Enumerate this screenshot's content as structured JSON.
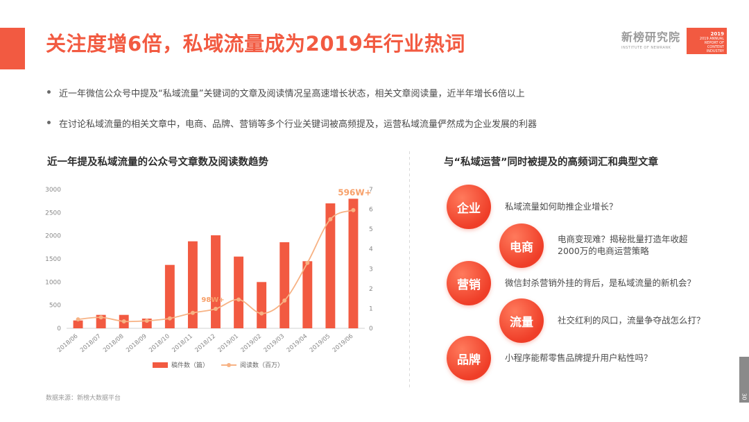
{
  "header": {
    "title": "关注度增6倍，私域流量成为2019年行业热词",
    "brand_cn": "新榜研究院",
    "brand_en": "INSTITUTE OF NEWRANK",
    "report_year": "2019",
    "report_line1": "2019 ANNUAL",
    "report_line2": "REPORT OF",
    "report_line3": "CONTENT INDUSTRY"
  },
  "bullets": [
    "近一年微信公众号中提及“私域流量”关键词的文章及阅读情况呈高速增长状态，相关文章阅读量，近半年增长6倍以上",
    "在讨论私域流量的相关文章中，电商、品牌、营销等多个行业关键词被高频提及，运营私域流量俨然成为企业发展的利器"
  ],
  "left_section_title": "近一年提及私域流量的公众号文章数及阅读数趋势",
  "right_section_title": "与“私域运营”同时被提及的高频词汇和典型文章",
  "chart_data": {
    "type": "bar",
    "categories": [
      "2018/06",
      "2018/07",
      "2018/08",
      "2018/09",
      "2018/10",
      "2018/11",
      "2018/12",
      "2019/01",
      "2019/02",
      "2019/03",
      "2019/04",
      "2019/05",
      "2019/06"
    ],
    "y_left_ticks": [
      "0",
      "500",
      "1000",
      "1500",
      "2000",
      "2500",
      "3000"
    ],
    "y_right_ticks": [
      "0",
      "1",
      "2",
      "3",
      "4",
      "5",
      "6",
      "7"
    ],
    "ylim_left": [
      0,
      3000
    ],
    "ylim_right": [
      0,
      7
    ],
    "series": [
      {
        "name": "稿件数（篇）",
        "type": "bar",
        "axis": "left",
        "color": "#f25a41",
        "values": [
          170,
          290,
          290,
          210,
          1370,
          1880,
          2010,
          1550,
          1000,
          1860,
          1450,
          2700,
          2800
        ]
      },
      {
        "name": "阅读数（百万）",
        "type": "line",
        "axis": "right",
        "color": "#f7b284",
        "values": [
          0.45,
          0.55,
          0.35,
          0.38,
          0.5,
          0.78,
          0.98,
          1.45,
          0.75,
          1.4,
          3.3,
          5.5,
          5.96
        ]
      }
    ],
    "annotations": [
      {
        "label": "98W+",
        "index": 6
      },
      {
        "label": "596W+",
        "index": 12
      }
    ]
  },
  "legend": {
    "bar_label": "稿件数（篇）",
    "line_label": "阅读数（百万）"
  },
  "source": "数据来源：新榜大数据平台",
  "keywords": [
    {
      "word": "企业",
      "article": "私域流量如何助推企业增长？"
    },
    {
      "word": "电商",
      "article": "电商变现难？揭秘批量打造年收超\n2000万的电商运营策略"
    },
    {
      "word": "营销",
      "article": "微信封杀营销外挂的背后，是私域流量的新机会？"
    },
    {
      "word": "流量",
      "article": "社交红利的风口，流量争夺战怎么打？"
    },
    {
      "word": "品牌",
      "article": "小程序能帮零售品牌提升用户粘性吗？"
    }
  ],
  "page_number": "30",
  "colors": {
    "accent": "#f25a41",
    "line": "#f7b284"
  }
}
